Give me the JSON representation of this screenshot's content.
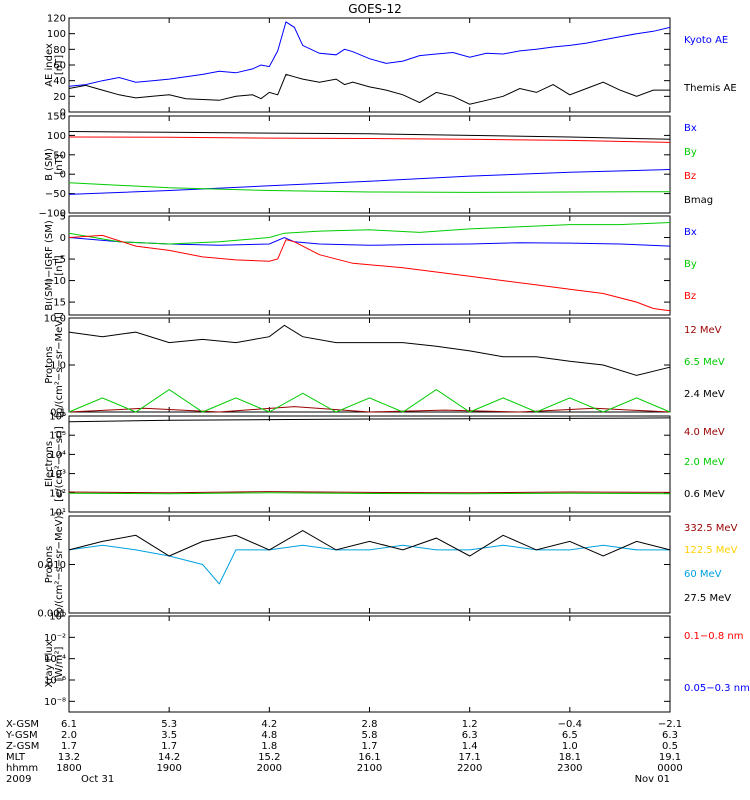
{
  "title": "GOES-12",
  "colors": {
    "black": "#000000",
    "blue": "#0000ff",
    "red": "#ff0000",
    "green": "#00cc00",
    "darkred": "#990000",
    "gold": "#ffd000",
    "cyan": "#00a0e0"
  },
  "chart_data": [
    {
      "type": "line",
      "ylabel": [
        "AE index",
        "[nT]"
      ],
      "ylim": [
        0,
        120
      ],
      "yticks": [
        0,
        20,
        40,
        60,
        80,
        100,
        120
      ],
      "ytick_labels": [
        "0",
        "20",
        "40",
        "60",
        "80",
        "100",
        "120"
      ],
      "series": [
        {
          "name": "Kyoto AE",
          "color": "#0000ff",
          "x": [
            0,
            10,
            20,
            30,
            40,
            50,
            60,
            70,
            80,
            90,
            100,
            110,
            115,
            120,
            125,
            130,
            135,
            140,
            150,
            160,
            165,
            170,
            180,
            190,
            200,
            210,
            220,
            230,
            240,
            250,
            260,
            270,
            280,
            290,
            300,
            310,
            320,
            330,
            340,
            350,
            360
          ],
          "y": [
            33,
            35,
            40,
            44,
            38,
            40,
            42,
            45,
            48,
            52,
            50,
            55,
            60,
            58,
            78,
            115,
            108,
            85,
            75,
            73,
            80,
            77,
            68,
            62,
            65,
            72,
            74,
            76,
            70,
            75,
            74,
            78,
            80,
            83,
            85,
            88,
            92,
            96,
            100,
            103,
            108
          ]
        },
        {
          "name": "Themis AE",
          "color": "#000000",
          "x": [
            0,
            10,
            20,
            30,
            40,
            50,
            60,
            70,
            80,
            90,
            100,
            110,
            115,
            120,
            125,
            130,
            135,
            140,
            150,
            160,
            165,
            170,
            180,
            190,
            200,
            210,
            220,
            230,
            240,
            250,
            260,
            270,
            280,
            290,
            300,
            310,
            320,
            330,
            340,
            350,
            360
          ],
          "y": [
            30,
            34,
            28,
            22,
            18,
            20,
            22,
            17,
            16,
            15,
            20,
            22,
            17,
            25,
            22,
            48,
            45,
            42,
            38,
            42,
            35,
            38,
            32,
            28,
            22,
            12,
            25,
            20,
            10,
            15,
            20,
            30,
            25,
            35,
            22,
            30,
            38,
            28,
            20,
            28,
            28
          ]
        }
      ]
    },
    {
      "type": "line",
      "ylabel": [
        "B (SM)",
        "[nT]"
      ],
      "ylim": [
        -100,
        150
      ],
      "yticks": [
        -100,
        -50,
        0,
        50,
        100,
        150
      ],
      "ytick_labels": [
        "−100",
        "−50",
        "0",
        "50",
        "100",
        "150"
      ],
      "series": [
        {
          "name": "Bx",
          "color": "#0000ff",
          "x": [
            0,
            60,
            120,
            180,
            240,
            300,
            360
          ],
          "y": [
            -52,
            -42,
            -30,
            -18,
            -5,
            5,
            12
          ]
        },
        {
          "name": "By",
          "color": "#00cc00",
          "x": [
            0,
            60,
            120,
            180,
            240,
            300,
            360
          ],
          "y": [
            -22,
            -35,
            -42,
            -46,
            -47,
            -46,
            -45
          ]
        },
        {
          "name": "Bz",
          "color": "#ff0000",
          "x": [
            0,
            60,
            120,
            180,
            240,
            300,
            360
          ],
          "y": [
            96,
            95,
            93,
            92,
            90,
            87,
            82
          ]
        },
        {
          "name": "Bmag",
          "color": "#000000",
          "x": [
            0,
            60,
            120,
            180,
            240,
            300,
            360
          ],
          "y": [
            110,
            108,
            106,
            104,
            100,
            96,
            90
          ]
        }
      ]
    },
    {
      "type": "line",
      "ylabel": [
        "B (SM)−IGRF (SM)",
        "[nT]"
      ],
      "ylim": [
        -18,
        5
      ],
      "yticks": [
        -15,
        -10,
        -5,
        0,
        5
      ],
      "ytick_labels": [
        "−15",
        "−10",
        "−5",
        "0",
        "5"
      ],
      "series": [
        {
          "name": "Bx",
          "color": "#0000ff",
          "x": [
            0,
            30,
            60,
            90,
            120,
            129,
            135,
            150,
            180,
            210,
            240,
            270,
            300,
            330,
            360
          ],
          "y": [
            0,
            -1,
            -1.5,
            -1.8,
            -1.5,
            0,
            -1,
            -1.5,
            -1.8,
            -1.6,
            -1.5,
            -1.2,
            -1.3,
            -1.5,
            -2
          ]
        },
        {
          "name": "By",
          "color": "#00cc00",
          "x": [
            0,
            30,
            60,
            90,
            120,
            129,
            150,
            180,
            210,
            240,
            270,
            300,
            330,
            360
          ],
          "y": [
            1,
            -1,
            -1.5,
            -1,
            0,
            1,
            1.5,
            1.8,
            1.2,
            2,
            2.5,
            3,
            3,
            3.5
          ]
        },
        {
          "name": "Bz",
          "color": "#ff0000",
          "x": [
            0,
            20,
            40,
            60,
            80,
            100,
            120,
            125,
            130,
            135,
            150,
            170,
            200,
            220,
            240,
            260,
            280,
            300,
            320,
            340,
            350,
            360
          ],
          "y": [
            0,
            0.5,
            -2,
            -3,
            -4.5,
            -5.2,
            -5.5,
            -5,
            -0.5,
            -1,
            -4,
            -6,
            -7,
            -8,
            -9,
            -10,
            -11,
            -12,
            -13,
            -15,
            -16.5,
            -17
          ]
        }
      ]
    },
    {
      "type": "line",
      "ylabel": [
        "Protons",
        "[p/(cm²−s−sr−MeV)]"
      ],
      "yscale": "log",
      "ylim": [
        0.1,
        10
      ],
      "yticks": [
        0.1,
        1,
        10
      ],
      "ytick_labels": [
        "0.1",
        "1.0",
        "10.0"
      ],
      "series": [
        {
          "name": "12 MeV",
          "color": "#990000",
          "x": [
            0,
            45,
            90,
            135,
            180,
            225,
            270,
            315,
            360
          ],
          "y": [
            0.1,
            0.12,
            0.1,
            0.13,
            0.1,
            0.11,
            0.1,
            0.12,
            0.1
          ]
        },
        {
          "name": "6.5 MeV",
          "color": "#00cc00",
          "x": [
            0,
            20,
            40,
            60,
            80,
            100,
            120,
            140,
            160,
            180,
            200,
            220,
            240,
            260,
            280,
            300,
            320,
            340,
            360
          ],
          "y": [
            0.1,
            0.2,
            0.1,
            0.3,
            0.1,
            0.2,
            0.1,
            0.25,
            0.1,
            0.2,
            0.1,
            0.3,
            0.1,
            0.2,
            0.1,
            0.2,
            0.1,
            0.2,
            0.1
          ]
        },
        {
          "name": "2.4 MeV",
          "color": "#000000",
          "x": [
            0,
            20,
            40,
            60,
            80,
            100,
            120,
            129,
            140,
            160,
            180,
            200,
            220,
            240,
            260,
            280,
            300,
            320,
            340,
            360
          ],
          "y": [
            5,
            4,
            5,
            3,
            3.5,
            3,
            4,
            7,
            4,
            3,
            3,
            3,
            2.5,
            2,
            1.5,
            1.5,
            1.2,
            1,
            0.6,
            0.9
          ]
        }
      ]
    },
    {
      "type": "line",
      "ylabel": [
        "Electrons",
        "[e/(cm²−s−sr)]"
      ],
      "yscale": "log",
      "ylim": [
        10,
        1000000
      ],
      "yticks": [
        10,
        100,
        1000,
        10000,
        100000,
        1000000
      ],
      "ytick_labels": [
        "10¹",
        "10²",
        "10³",
        "10⁴",
        "10⁵",
        "10⁶"
      ],
      "series": [
        {
          "name": "4.0 MeV",
          "color": "#990000",
          "x": [
            0,
            60,
            120,
            180,
            240,
            300,
            360
          ],
          "y": [
            110,
            100,
            115,
            105,
            100,
            110,
            105
          ]
        },
        {
          "name": "2.0 MeV",
          "color": "#00cc00",
          "x": [
            0,
            60,
            120,
            180,
            240,
            300,
            360
          ],
          "y": [
            95,
            90,
            100,
            92,
            90,
            95,
            90
          ]
        },
        {
          "name": "0.6 MeV",
          "color": "#000000",
          "x": [
            0,
            60,
            120,
            180,
            240,
            300,
            360
          ],
          "y": [
            500000,
            600000,
            650000,
            700000,
            720000,
            750000,
            800000
          ]
        }
      ]
    },
    {
      "type": "line",
      "ylabel": [
        "Protons",
        "[p/(cm²−s−sr−MeV)]"
      ],
      "yscale": "log",
      "ylim": [
        0.001,
        0.1
      ],
      "yticks": [
        0.001,
        0.01
      ],
      "ytick_labels": [
        "0.001",
        "0.010"
      ],
      "series": [
        {
          "name": "332.5 MeV",
          "color": "#990000",
          "x": [],
          "y": []
        },
        {
          "name": "122.5 MeV",
          "color": "#ffd000",
          "x": [],
          "y": []
        },
        {
          "name": "60 MeV",
          "color": "#00a0e0",
          "x": [
            0,
            20,
            40,
            60,
            80,
            90,
            100,
            120,
            140,
            160,
            180,
            200,
            220,
            240,
            260,
            280,
            300,
            320,
            340,
            360
          ],
          "y": [
            0.02,
            0.025,
            0.02,
            0.015,
            0.01,
            0.004,
            0.02,
            0.02,
            0.025,
            0.02,
            0.02,
            0.025,
            0.02,
            0.02,
            0.025,
            0.02,
            0.02,
            0.025,
            0.02,
            0.02
          ]
        },
        {
          "name": "27.5 MeV",
          "color": "#000000",
          "x": [
            0,
            20,
            40,
            60,
            80,
            100,
            120,
            140,
            160,
            180,
            200,
            220,
            240,
            260,
            280,
            300,
            320,
            340,
            360
          ],
          "y": [
            0.02,
            0.03,
            0.04,
            0.015,
            0.03,
            0.04,
            0.02,
            0.05,
            0.02,
            0.03,
            0.02,
            0.035,
            0.015,
            0.04,
            0.02,
            0.03,
            0.015,
            0.03,
            0.02
          ]
        }
      ]
    },
    {
      "type": "line",
      "ylabel": [
        "Xray  Flux",
        "[W/m²]"
      ],
      "yscale": "log",
      "ylim": [
        1e-09,
        1
      ],
      "yticks": [
        1e-08,
        1e-06,
        0.0001,
        0.01,
        1
      ],
      "ytick_labels": [
        "10⁻⁸",
        "10⁻⁶",
        "10⁻⁴",
        "10⁻²",
        "10⁰"
      ],
      "series": [
        {
          "name": "0.1−0.8 nm",
          "color": "#ff0000",
          "x": [],
          "y": []
        },
        {
          "name": "0.05−0.3 nm",
          "color": "#0000ff",
          "x": [],
          "y": []
        }
      ]
    }
  ],
  "ephemeris": {
    "row_labels": [
      "X-GSM",
      "Y-GSM",
      "Z-GSM",
      "MLT",
      "hhmm",
      "2009"
    ],
    "columns": [
      {
        "values": [
          "6.1",
          "2.0",
          "1.7",
          "13.2",
          "1800",
          "Oct 31"
        ]
      },
      {
        "values": [
          "5.3",
          "3.5",
          "1.7",
          "14.2",
          "1900",
          ""
        ]
      },
      {
        "values": [
          "4.2",
          "4.8",
          "1.8",
          "15.2",
          "2000",
          ""
        ]
      },
      {
        "values": [
          "2.8",
          "5.8",
          "1.7",
          "16.1",
          "2100",
          ""
        ]
      },
      {
        "values": [
          "1.2",
          "6.3",
          "1.4",
          "17.1",
          "2200",
          ""
        ]
      },
      {
        "values": [
          "−0.4",
          "6.5",
          "1.0",
          "18.1",
          "2300",
          ""
        ]
      },
      {
        "values": [
          "−2.1",
          "6.3",
          "0.5",
          "19.1",
          "0000",
          "Nov 01"
        ]
      }
    ]
  }
}
